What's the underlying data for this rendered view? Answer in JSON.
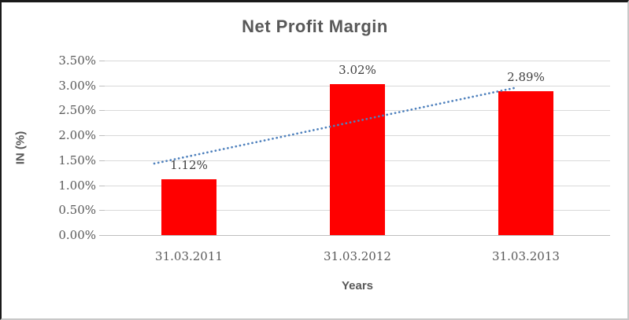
{
  "chart_data": {
    "type": "bar",
    "title": "Net Profit Margin",
    "xlabel": "Years",
    "ylabel": "IN (%)",
    "categories": [
      "31.03.2011",
      "31.03.2012",
      "31.03.2013"
    ],
    "series": [
      {
        "name": "Net Profit Margin",
        "values": [
          1.12,
          3.02,
          2.89
        ],
        "data_labels": [
          "1.12%",
          "3.02%",
          "2.89%"
        ],
        "color": "#FF0000"
      }
    ],
    "ylim": [
      0,
      3.5
    ],
    "ytick_step": 0.5,
    "ytick_labels": [
      "0.00%",
      "0.50%",
      "1.00%",
      "1.50%",
      "2.00%",
      "2.50%",
      "3.00%",
      "3.50%"
    ],
    "grid": true,
    "legend": "none",
    "trendline": {
      "type": "linear",
      "style": "dotted",
      "color": "#4F81BD"
    },
    "colors": {
      "background": "#FFFFFF",
      "title_text": "#595959",
      "axis_text": "#595959",
      "data_label_text": "#404040",
      "gridline": "#D9D9D9",
      "axis_line": "#BFBFBF",
      "bar_fill": "#FF0000",
      "trendline": "#4F81BD",
      "frame_dark": "#1A1A1A",
      "frame_light": "#C8C8C8"
    }
  }
}
